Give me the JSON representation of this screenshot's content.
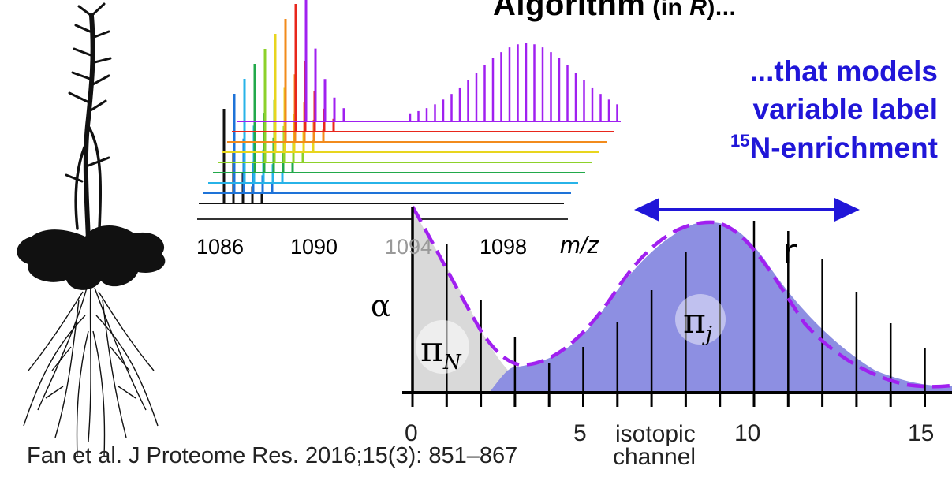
{
  "title": {
    "main": "Algorithm",
    "paren_open": " (in ",
    "r": "R",
    "paren_close": ")..."
  },
  "blue_text": {
    "line1": "...that models",
    "line2": "variable label",
    "line3_sup": "15",
    "line3": "N-enrichment"
  },
  "mass_spectrum": {
    "mz_ticks": [
      "1086",
      "1090",
      "1094",
      "1098"
    ],
    "mz_unit": "m/z",
    "trace_colors": [
      "#111111",
      "#1e73d8",
      "#27b3e8",
      "#22a94a",
      "#8dd12a",
      "#e8d51e",
      "#f28b1c",
      "#e8261c",
      "#a020f0"
    ]
  },
  "isotope_plot": {
    "label_alpha": "α",
    "label_r": "r",
    "pi_n": "π",
    "pi_n_sub": "N",
    "pi_j": "π",
    "pi_j_sub": "j",
    "x_ticks": [
      "0",
      "5",
      "10",
      "15"
    ],
    "x_label_line1": "isotopic",
    "x_label_line2": "channel",
    "colors": {
      "natural_fill": "#d9d9d9",
      "labeled_fill": "#8d8fe2",
      "envelope": "#a020f0",
      "arrow": "#2016d8"
    }
  },
  "citation": "Fan et al. J Proteome Res. 2016;15(3): 851–867"
}
